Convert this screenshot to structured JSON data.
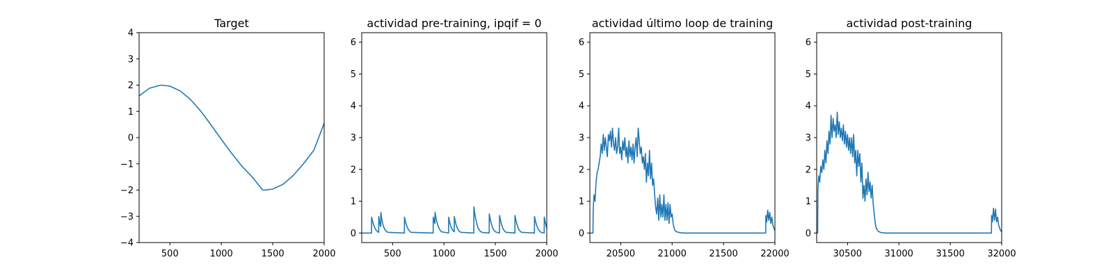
{
  "colors": {
    "series": "#1f77b4",
    "axes": "#000000",
    "background": "#ffffff"
  },
  "chart_data": [
    {
      "type": "line",
      "title": "Target",
      "xlim": [
        200,
        2000
      ],
      "ylim": [
        -4,
        4
      ],
      "xticks": [
        500,
        1000,
        1500,
        2000
      ],
      "xtick_labels": [
        "500",
        "1000",
        "1500",
        "2000"
      ],
      "yticks": [
        -4,
        -3,
        -2,
        -1,
        0,
        1,
        2,
        3,
        4
      ],
      "ytick_labels": [
        "−4",
        "−3",
        "−2",
        "−1",
        "0",
        "1",
        "2",
        "3",
        "4"
      ],
      "grid": false,
      "series": [
        {
          "x": [
            200,
            300,
            400,
            420,
            500,
            600,
            700,
            800,
            900,
            1000,
            1100,
            1200,
            1300,
            1400,
            1420,
            1500,
            1600,
            1700,
            1800,
            1900,
            2000
          ],
          "y": [
            1.59,
            1.88,
            1.99,
            2.0,
            1.96,
            1.78,
            1.45,
            1.01,
            0.48,
            -0.07,
            -0.6,
            -1.09,
            -1.5,
            -1.99,
            -2.0,
            -1.96,
            -1.78,
            -1.44,
            -0.99,
            -0.48,
            0.55
          ]
        }
      ]
    },
    {
      "type": "line",
      "title": "actividad pre-training, ipqif = 0",
      "xlim": [
        200,
        2000
      ],
      "ylim": [
        -0.3,
        6.3
      ],
      "xticks": [
        500,
        1000,
        1500,
        2000
      ],
      "xtick_labels": [
        "500",
        "1000",
        "1500",
        "2000"
      ],
      "yticks": [
        0,
        1,
        2,
        3,
        4,
        5,
        6
      ],
      "ytick_labels": [
        "0",
        "1",
        "2",
        "3",
        "4",
        "5",
        "6"
      ],
      "grid": false,
      "series": [
        {
          "x": [
            200,
            295,
            296,
            305,
            315,
            330,
            345,
            360,
            365,
            366,
            372,
            380,
            385,
            386,
            392,
            400,
            410,
            425,
            440,
            455,
            615,
            616,
            625,
            635,
            650,
            665,
            680,
            895,
            896,
            905,
            912,
            913,
            920,
            930,
            945,
            960,
            975,
            1045,
            1046,
            1055,
            1065,
            1080,
            1095,
            1100,
            1101,
            1110,
            1120,
            1135,
            1150,
            1165,
            1290,
            1291,
            1300,
            1310,
            1325,
            1340,
            1355,
            1370,
            1440,
            1441,
            1450,
            1460,
            1475,
            1490,
            1505,
            1540,
            1541,
            1550,
            1560,
            1575,
            1590,
            1605,
            1690,
            1691,
            1700,
            1710,
            1725,
            1740,
            1755,
            1880,
            1881,
            1890,
            1900,
            1915,
            1930,
            1945,
            1975,
            1976,
            1985,
            1995,
            2000
          ],
          "y": [
            0,
            0,
            0.5,
            0.38,
            0.26,
            0.14,
            0.07,
            0.03,
            0.02,
            0.52,
            0.38,
            0.25,
            0.2,
            0.65,
            0.5,
            0.35,
            0.22,
            0.11,
            0.05,
            0.02,
            0,
            0.5,
            0.36,
            0.25,
            0.13,
            0.06,
            0.02,
            0,
            0.5,
            0.36,
            0.3,
            0.65,
            0.52,
            0.36,
            0.2,
            0.1,
            0.04,
            0,
            0.5,
            0.35,
            0.22,
            0.11,
            0.05,
            0.04,
            0.52,
            0.37,
            0.24,
            0.12,
            0.05,
            0.02,
            0,
            0.82,
            0.6,
            0.42,
            0.22,
            0.11,
            0.05,
            0.02,
            0,
            0.6,
            0.44,
            0.3,
            0.15,
            0.07,
            0.03,
            0,
            0.55,
            0.4,
            0.27,
            0.13,
            0.06,
            0.02,
            0,
            0.55,
            0.4,
            0.27,
            0.13,
            0.06,
            0.02,
            0,
            0.52,
            0.38,
            0.26,
            0.13,
            0.06,
            0.02,
            0,
            0.5,
            0.35,
            0.22,
            0.15
          ]
        }
      ]
    },
    {
      "type": "line",
      "title": "actividad último loop de training",
      "xlim": [
        20200,
        22000
      ],
      "ylim": [
        -0.3,
        6.3
      ],
      "xticks": [
        20500,
        21000,
        21500,
        22000
      ],
      "xtick_labels": [
        "20500",
        "21000",
        "21500",
        "22000"
      ],
      "yticks": [
        0,
        1,
        2,
        3,
        4,
        5,
        6
      ],
      "ytick_labels": [
        "0",
        "1",
        "2",
        "3",
        "4",
        "5",
        "6"
      ],
      "grid": false,
      "series": [
        {
          "x": [
            20200,
            20230,
            20232,
            20240,
            20250,
            20260,
            20270,
            20280,
            20290,
            20300,
            20310,
            20320,
            20330,
            20340,
            20350,
            20360,
            20370,
            20380,
            20390,
            20400,
            20410,
            20420,
            20430,
            20440,
            20450,
            20460,
            20470,
            20480,
            20490,
            20500,
            20510,
            20520,
            20530,
            20540,
            20550,
            20560,
            20570,
            20580,
            20590,
            20600,
            20610,
            20620,
            20630,
            20640,
            20650,
            20660,
            20670,
            20680,
            20690,
            20700,
            20710,
            20720,
            20730,
            20740,
            20750,
            20760,
            20770,
            20780,
            20790,
            20800,
            20810,
            20820,
            20830,
            20840,
            20850,
            20860,
            20870,
            20880,
            20890,
            20900,
            20910,
            20920,
            20930,
            20940,
            20950,
            20960,
            20970,
            20980,
            20990,
            21000,
            21010,
            21020,
            21030,
            21050,
            21080,
            21120,
            21200,
            21300,
            21400,
            21500,
            21600,
            21700,
            21800,
            21900,
            21910,
            21912,
            21920,
            21930,
            21940,
            21950,
            21960,
            21970,
            21980,
            21990,
            22000
          ],
          "y": [
            0,
            0,
            0.7,
            1.2,
            1.0,
            1.6,
            1.9,
            2.0,
            2.2,
            2.4,
            2.8,
            2.5,
            3.1,
            2.6,
            3.0,
            2.7,
            2.4,
            3.1,
            2.9,
            3.2,
            2.7,
            3.3,
            2.8,
            2.6,
            3.0,
            2.5,
            2.7,
            3.3,
            2.5,
            2.7,
            2.3,
            2.9,
            2.6,
            3.0,
            2.4,
            2.7,
            2.2,
            2.9,
            2.4,
            2.7,
            2.3,
            2.8,
            2.2,
            2.7,
            3.0,
            2.4,
            3.3,
            2.9,
            2.5,
            2.7,
            2.2,
            2.4,
            2.0,
            2.5,
            1.6,
            2.2,
            1.8,
            2.6,
            1.7,
            2.2,
            1.5,
            1.7,
            1.2,
            0.8,
            0.6,
            1.1,
            0.4,
            1.2,
            0.5,
            0.9,
            0.5,
            1.2,
            0.4,
            0.9,
            0.4,
            0.95,
            0.3,
            0.9,
            0.5,
            0.6,
            0.3,
            0.15,
            0.07,
            0.03,
            0.01,
            0,
            0,
            0,
            0,
            0,
            0,
            0,
            0,
            0,
            0,
            0.55,
            0.35,
            0.72,
            0.4,
            0.65,
            0.3,
            0.5,
            0.25,
            0.15,
            0.08
          ]
        }
      ]
    },
    {
      "type": "line",
      "title": "actividad post-training",
      "xlim": [
        30200,
        32000
      ],
      "ylim": [
        -0.3,
        6.3
      ],
      "xticks": [
        30500,
        31000,
        31500,
        32000
      ],
      "xtick_labels": [
        "30500",
        "31000",
        "31500",
        "32000"
      ],
      "yticks": [
        0,
        1,
        2,
        3,
        4,
        5,
        6
      ],
      "ytick_labels": [
        "0",
        "1",
        "2",
        "3",
        "4",
        "5",
        "6"
      ],
      "grid": false,
      "series": [
        {
          "x": [
            30200,
            30210,
            30212,
            30220,
            30230,
            30240,
            30250,
            30260,
            30270,
            30280,
            30290,
            30300,
            30310,
            30320,
            30330,
            30340,
            30350,
            30360,
            30370,
            30380,
            30390,
            30400,
            30410,
            30420,
            30430,
            30440,
            30450,
            30460,
            30470,
            30480,
            30490,
            30500,
            30510,
            30520,
            30530,
            30540,
            30550,
            30560,
            30570,
            30580,
            30590,
            30600,
            30610,
            30620,
            30630,
            30640,
            30650,
            30660,
            30670,
            30680,
            30690,
            30700,
            30710,
            30720,
            30730,
            30740,
            30750,
            30760,
            30770,
            30780,
            30800,
            30830,
            30870,
            30950,
            31100,
            31300,
            31500,
            31700,
            31890,
            31900,
            31902,
            31910,
            31920,
            31930,
            31940,
            31950,
            31960,
            31970,
            31980,
            31990,
            32000
          ],
          "y": [
            0,
            0,
            1.4,
            1.8,
            1.6,
            2.1,
            1.9,
            2.3,
            2.0,
            2.6,
            2.2,
            2.9,
            2.5,
            3.2,
            2.8,
            3.7,
            3.0,
            3.6,
            3.2,
            3.4,
            3.0,
            3.8,
            3.1,
            3.5,
            3.0,
            3.3,
            2.9,
            3.4,
            2.8,
            3.2,
            2.7,
            3.1,
            2.6,
            3.0,
            2.5,
            3.0,
            2.4,
            3.1,
            2.2,
            2.6,
            1.8,
            2.6,
            2.1,
            2.5,
            1.6,
            2.2,
            1.1,
            1.5,
            1.0,
            1.7,
            1.2,
            1.9,
            1.3,
            1.6,
            1.1,
            1.5,
            0.9,
            0.6,
            0.3,
            0.15,
            0.05,
            0.01,
            0,
            0,
            0,
            0,
            0,
            0,
            0,
            0,
            0.55,
            0.35,
            0.78,
            0.4,
            0.75,
            0.35,
            0.5,
            0.25,
            0.15,
            0.08,
            0.03
          ]
        }
      ]
    }
  ]
}
